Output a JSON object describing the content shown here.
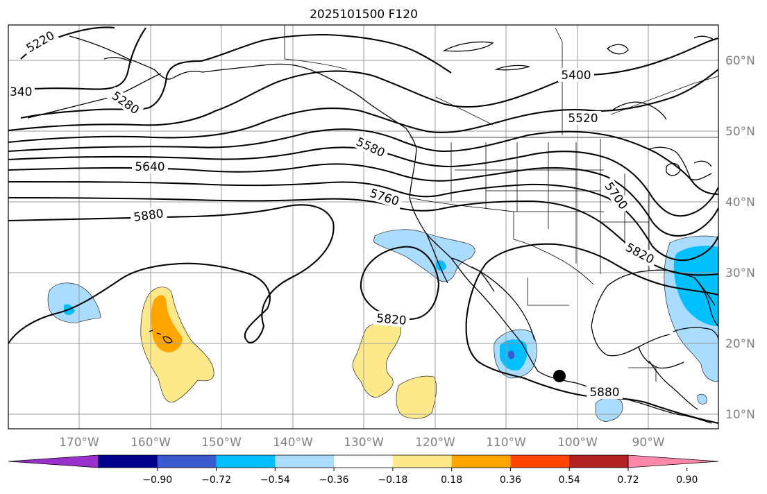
{
  "title": "2025101500 F120",
  "lat_labels": [
    "60°N",
    "50°N",
    "40°N",
    "30°N",
    "20°N",
    "10°N"
  ],
  "lon_labels": [
    "170°W",
    "160°W",
    "150°W",
    "140°W",
    "130°W",
    "120°W",
    "110°W",
    "100°W",
    "90°W"
  ],
  "contour_labels": [
    "5220",
    "340",
    "5280",
    "5400",
    "5520",
    "5580",
    "5640",
    "5700",
    "5760",
    "5820",
    "5880",
    "5820",
    "5880"
  ],
  "colorbar": {
    "ticks": [
      "−0.90",
      "−0.72",
      "−0.54",
      "−0.36",
      "−0.18",
      "0.18",
      "0.36",
      "0.54",
      "0.72",
      "0.90"
    ],
    "colors": [
      "#9932cc",
      "#00008b",
      "#3a5bcf",
      "#00bfff",
      "#aadcff",
      "#ffffff",
      "#fde98a",
      "#ffa500",
      "#ff4500",
      "#b22222",
      "#ff88aa"
    ]
  },
  "marker": "storm-center-dot"
}
